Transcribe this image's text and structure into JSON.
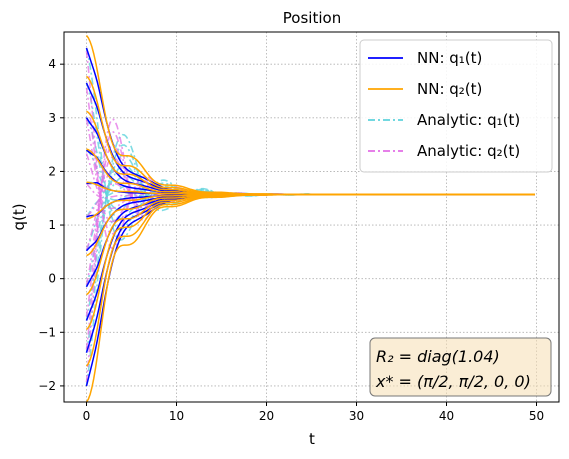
{
  "chart_data": {
    "type": "line",
    "title": "Position",
    "xlabel": "t",
    "ylabel": "q(t)",
    "xlim": [
      -2.5,
      52.5
    ],
    "ylim": [
      -2.3,
      4.6
    ],
    "xticks": [
      0,
      10,
      20,
      30,
      40,
      50
    ],
    "yticks": [
      -2,
      -1,
      0,
      1,
      2,
      3,
      4
    ],
    "x_tick_labels": [
      "0",
      "10",
      "20",
      "30",
      "40",
      "50"
    ],
    "y_tick_labels": [
      "−2",
      "−1",
      "0",
      "1",
      "2",
      "3",
      "4"
    ],
    "grid": true,
    "legend_position": "top-right",
    "target": 1.5708,
    "t_end": 50,
    "series": [
      {
        "name": "NN: q₁(t)",
        "color": "#0000ff",
        "style": "solid"
      },
      {
        "name": "NN: q₂(t)",
        "color": "#ffa500",
        "style": "solid"
      },
      {
        "name": "Analytic: q₁(t)",
        "color": "#5fd3dc",
        "style": "dashdot"
      },
      {
        "name": "Analytic: q₂(t)",
        "color": "#e36fe6",
        "style": "dashdot"
      }
    ],
    "initial_conditions": {
      "q1_start": [
        4.3,
        3.65,
        3.0,
        2.4,
        1.78,
        1.15,
        0.52,
        -0.15,
        -0.78,
        -1.38,
        -2.0
      ],
      "q2_start": [
        4.3,
        3.6,
        3.0,
        2.35,
        1.78,
        1.15,
        0.52,
        -0.15,
        -0.75,
        -1.38,
        -2.0
      ]
    },
    "annotation": {
      "line1": "R₂ = diag(1.04)",
      "line2": "x* = (π/2, π/2, 0, 0)"
    }
  }
}
